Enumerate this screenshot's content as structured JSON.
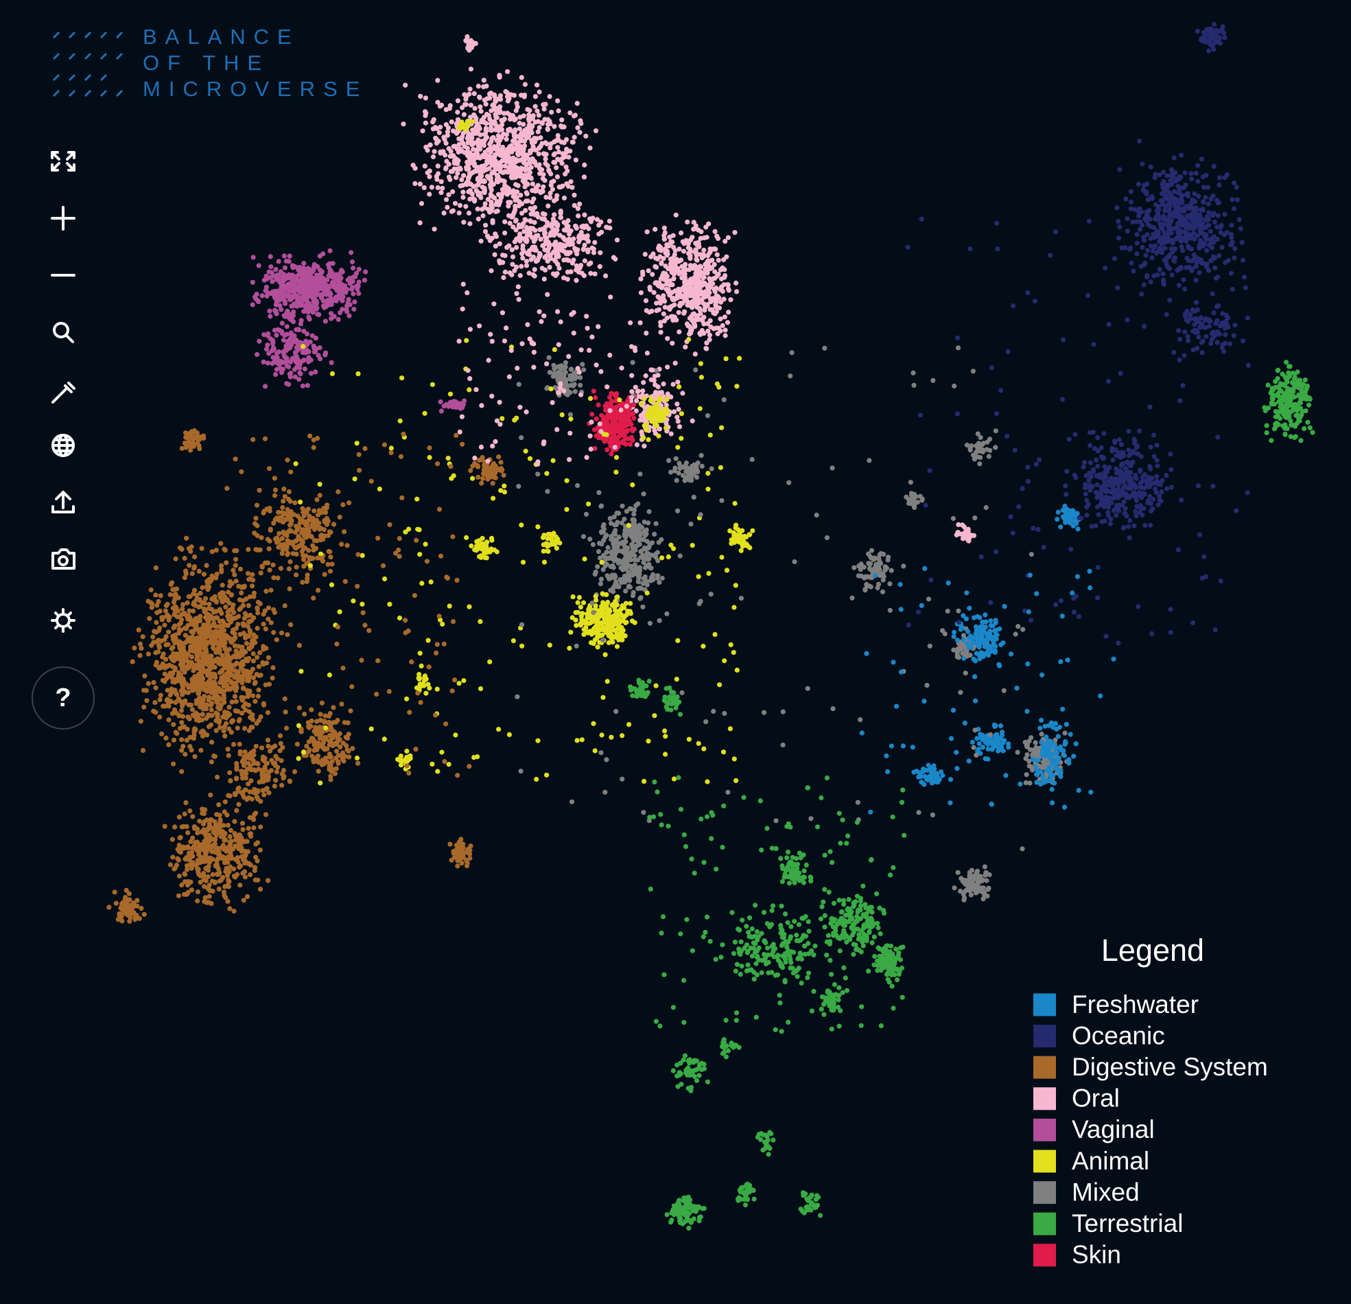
{
  "logo": {
    "lines": [
      "BALANCE",
      "OF THE",
      "MICROVERSE"
    ]
  },
  "toolbar": {
    "help": "?"
  },
  "legend": {
    "title": "Legend",
    "items": [
      {
        "name": "Freshwater",
        "color": "#1a87c9"
      },
      {
        "name": "Oceanic",
        "color": "#262a6e"
      },
      {
        "name": "Digestive System",
        "color": "#a8692a"
      },
      {
        "name": "Oral",
        "color": "#f7b8cf"
      },
      {
        "name": "Vaginal",
        "color": "#b24e9a"
      },
      {
        "name": "Animal",
        "color": "#e2e01c"
      },
      {
        "name": "Mixed",
        "color": "#808080"
      },
      {
        "name": "Terrestrial",
        "color": "#3aaa45"
      },
      {
        "name": "Skin",
        "color": "#e01c4b"
      }
    ]
  }
}
